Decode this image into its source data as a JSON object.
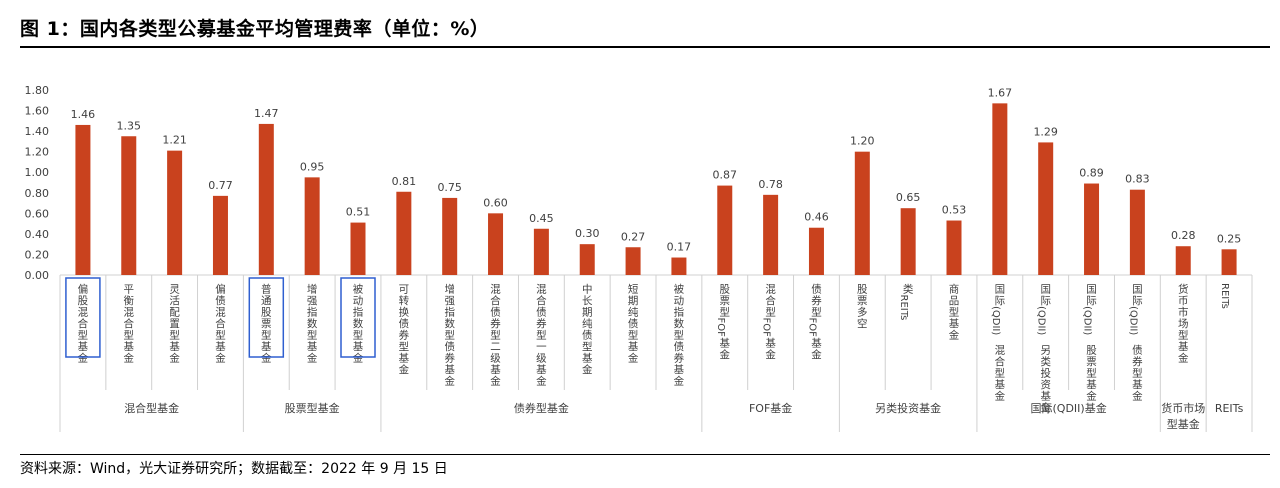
{
  "title": "图 1：国内各类型公募基金平均管理费率（单位：%）",
  "source": "资料来源：Wind，光大证券研究所；数据截至：2022 年 9 月 15 日",
  "colors": {
    "bar": "#C9421E",
    "highlight_box": "#2F5FD0",
    "grid_line": "#D0D0D0",
    "text": "#404040"
  },
  "chart_data": {
    "type": "bar",
    "title": "",
    "xlabel": "",
    "ylabel": "",
    "ylim": [
      0,
      1.8
    ],
    "yticks": [
      "0.00",
      "0.20",
      "0.40",
      "0.60",
      "0.80",
      "1.00",
      "1.20",
      "1.40",
      "1.60",
      "1.80"
    ],
    "grid": false,
    "categories": [
      "偏股混合型基金",
      "平衡混合型基金",
      "灵活配置型基金",
      "偏债混合型基金",
      "普通股票型基金",
      "增强指数型基金",
      "被动指数型基金",
      "可转换债券型基金",
      "增强指数型债券基金",
      "混合债券型二级基金",
      "混合债券型一级基金",
      "中长期纯债型基金",
      "短期纯债型基金",
      "被动指数型债券基金",
      "股票型FOF基金",
      "混合型FOF基金",
      "债券型FOF基金",
      "股票多空",
      "类REITs",
      "商品型基金",
      "国际(QDII)混合型基金",
      "国际(QDII)另类投资基金",
      "国际(QDII)股票型基金",
      "国际(QDII)债券型基金",
      "货币市场型基金",
      "REITs"
    ],
    "values": [
      1.46,
      1.35,
      1.21,
      0.77,
      1.47,
      0.95,
      0.51,
      0.81,
      0.75,
      0.6,
      0.45,
      0.3,
      0.27,
      0.17,
      0.87,
      0.78,
      0.46,
      1.2,
      0.65,
      0.53,
      1.67,
      1.29,
      0.89,
      0.83,
      0.28,
      0.25
    ],
    "data_labels": [
      "1.46",
      "1.35",
      "1.21",
      "0.77",
      "1.47",
      "0.95",
      "0.51",
      "0.81",
      "0.75",
      "0.60",
      "0.45",
      "0.30",
      "0.27",
      "0.17",
      "0.87",
      "0.78",
      "0.46",
      "1.20",
      "0.65",
      "0.53",
      "1.67",
      "1.29",
      "0.89",
      "0.83",
      "0.28",
      "0.25"
    ],
    "highlighted": [
      "偏股混合型基金",
      "普通股票型基金",
      "被动指数型基金"
    ],
    "groups": [
      {
        "label": "混合型基金",
        "count": 4
      },
      {
        "label": "股票型基金",
        "count": 3
      },
      {
        "label": "债券型基金",
        "count": 7
      },
      {
        "label": "FOF基金",
        "count": 3
      },
      {
        "label": "另类投资基金",
        "count": 3
      },
      {
        "label": "国际(QDII)基金",
        "count": 4
      },
      {
        "label": "货币市场型基金",
        "count": 1
      },
      {
        "label": "REITs",
        "count": 1
      }
    ]
  }
}
